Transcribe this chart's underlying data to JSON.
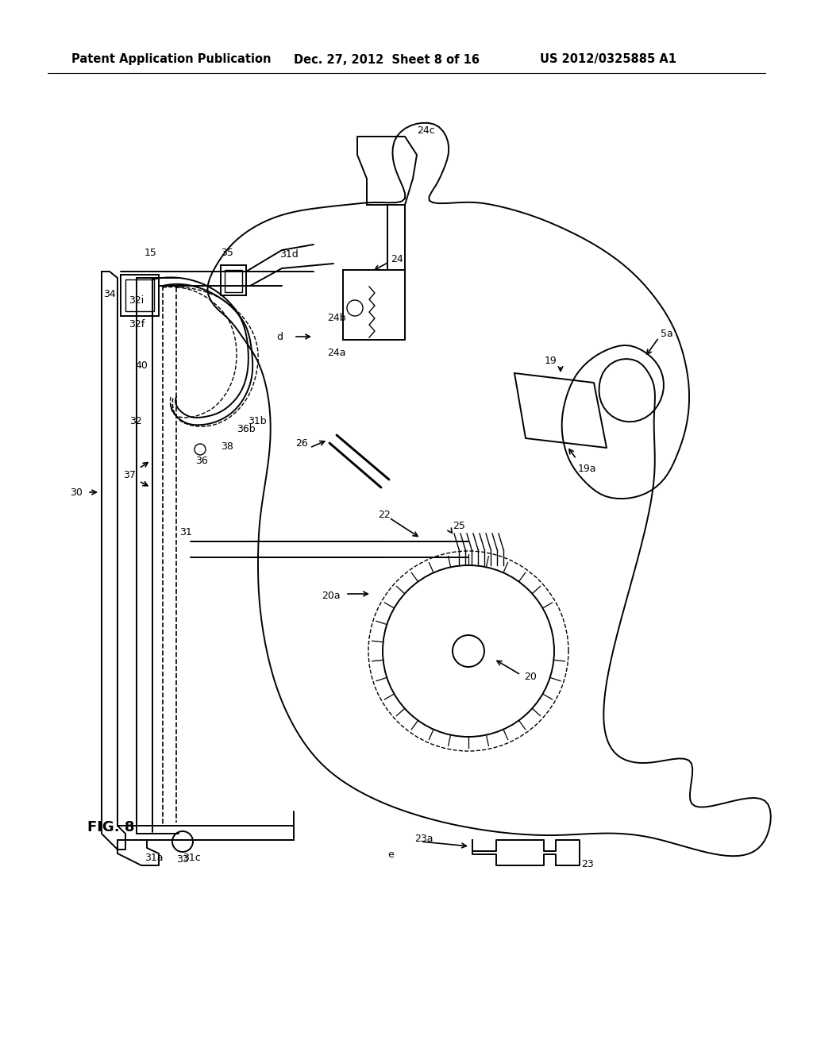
{
  "background_color": "#ffffff",
  "header_left": "Patent Application Publication",
  "header_center": "Dec. 27, 2012  Sheet 8 of 16",
  "header_right": "US 2012/0325885 A1",
  "figure_label": "FIG. 8",
  "line_color": "#000000",
  "line_width": 1.4,
  "font_size_header": 10.5,
  "font_size_label": 9
}
